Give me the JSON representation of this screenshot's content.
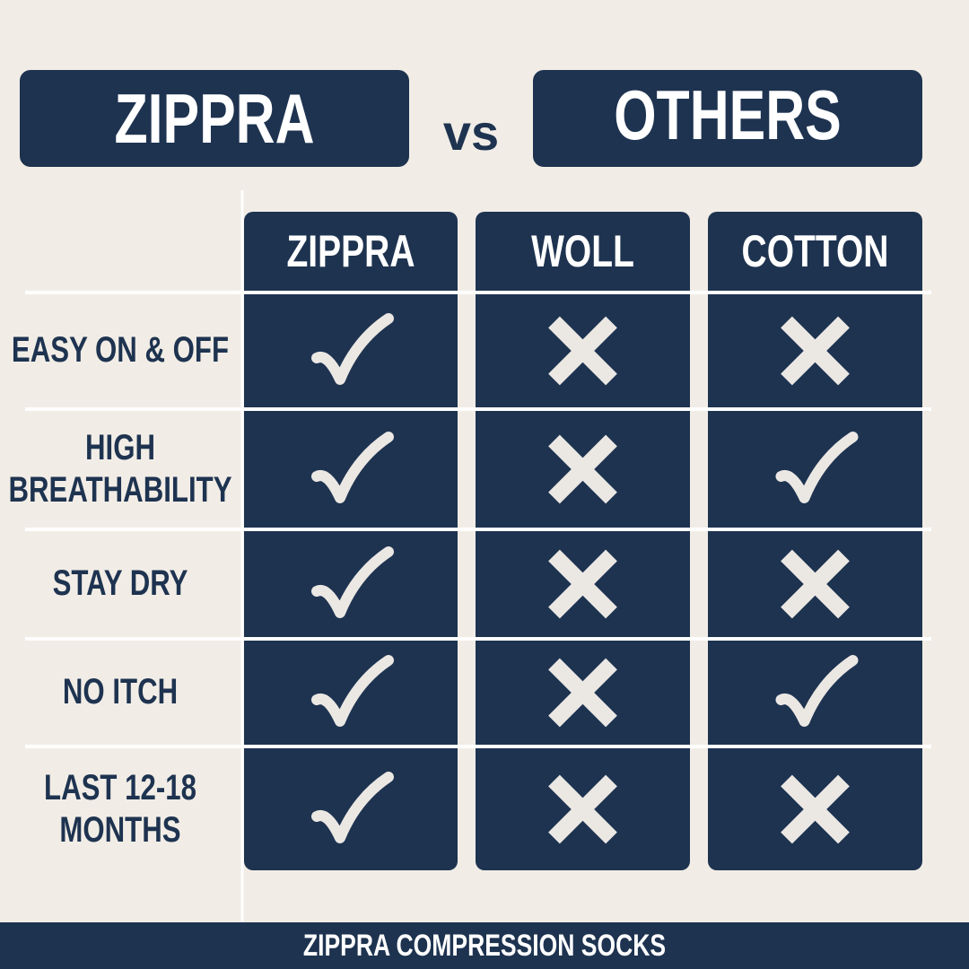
{
  "header": {
    "left": "ZIPPRA",
    "vs": "vs",
    "right": "OTHERS"
  },
  "table": {
    "columns": [
      "ZIPPRA",
      "WOLL",
      "COTTON"
    ],
    "rows": [
      {
        "label": "EASY ON & OFF",
        "cells": [
          true,
          false,
          false
        ]
      },
      {
        "label": "HIGH BREATHABILITY",
        "cells": [
          true,
          false,
          true
        ]
      },
      {
        "label": "STAY DRY",
        "cells": [
          true,
          false,
          false
        ]
      },
      {
        "label": "NO ITCH",
        "cells": [
          true,
          false,
          true
        ]
      },
      {
        "label": "LAST 12-18 MONTHS",
        "cells": [
          true,
          false,
          false
        ]
      }
    ]
  },
  "footer": "ZIPPRA COMPRESSION SOCKS"
}
